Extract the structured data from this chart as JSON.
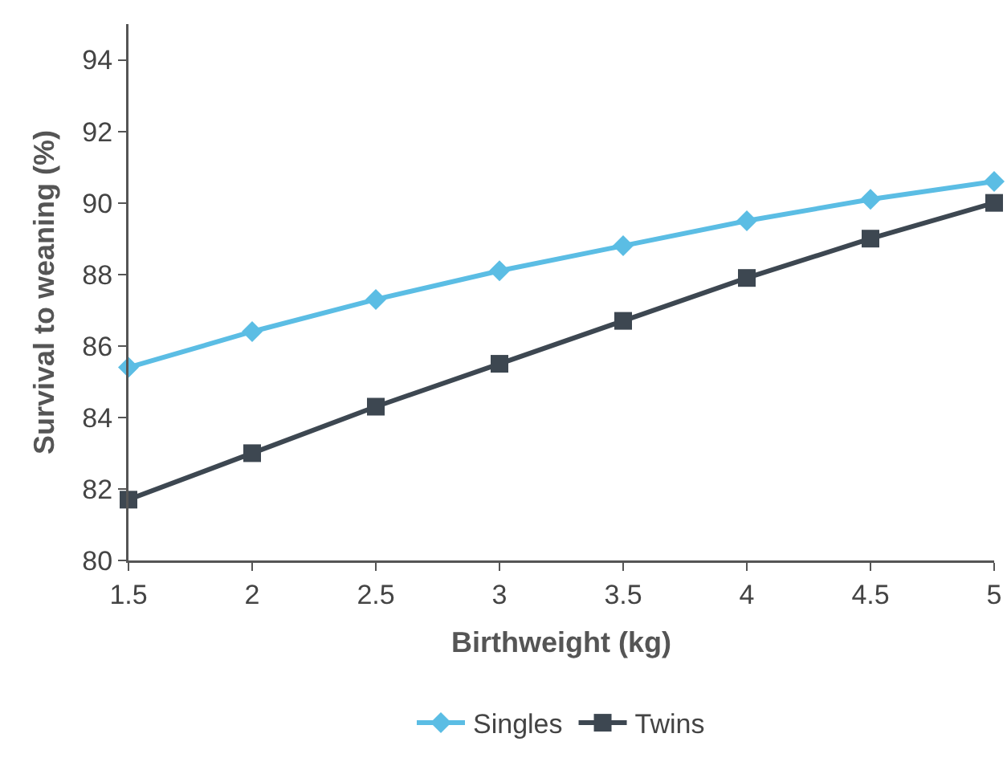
{
  "chart_data": {
    "type": "line",
    "xlabel": "Birthweight (kg)",
    "ylabel": "Survival to weaning (%)",
    "x": [
      1.5,
      2,
      2.5,
      3,
      3.5,
      4,
      4.5,
      5
    ],
    "series": [
      {
        "name": "Singles",
        "color": "#5bbde4",
        "marker": "diamond",
        "values": [
          85.4,
          86.4,
          87.3,
          88.1,
          88.8,
          89.5,
          90.1,
          90.6
        ]
      },
      {
        "name": "Twins",
        "color": "#3d4751",
        "marker": "square",
        "values": [
          81.7,
          83.0,
          84.3,
          85.5,
          86.7,
          87.9,
          89.0,
          90.0
        ]
      }
    ],
    "xlim": [
      1.5,
      5
    ],
    "xticks": [
      1.5,
      2,
      2.5,
      3,
      3.5,
      4,
      4.5,
      5
    ],
    "ylim": [
      80,
      95
    ],
    "yticks": [
      80,
      82,
      84,
      86,
      88,
      90,
      92,
      94
    ],
    "grid": false,
    "legend": "bottom",
    "line_style": "solid"
  }
}
